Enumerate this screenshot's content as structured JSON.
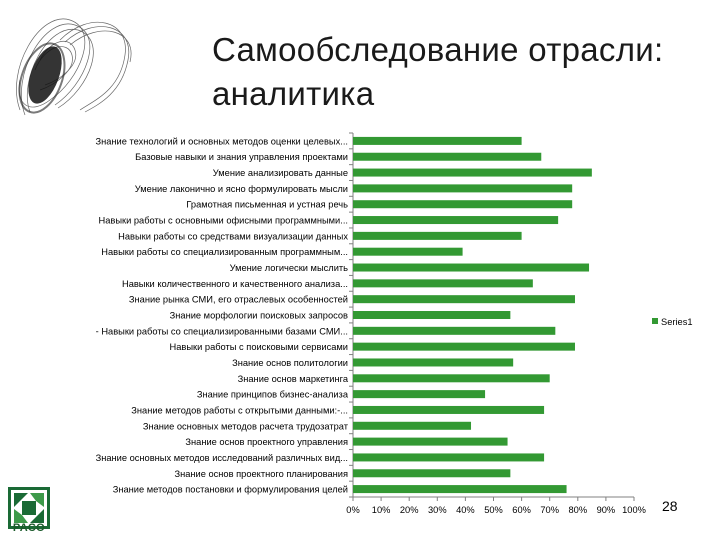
{
  "slide": {
    "title_line1": "Самообследование отрасли:",
    "title_line2": "аналитика",
    "page_number": "28",
    "logo_text": "РАСО",
    "colors": {
      "bar": "#339933",
      "axis": "#808080",
      "logo": "#1a6a35"
    }
  },
  "chart_data": {
    "type": "bar",
    "orientation": "horizontal",
    "categories": [
      "Знание технологий и основных методов оценки целевых...",
      "Базовые навыки и знания управления проектами",
      "Умение анализировать данные",
      "Умение лаконично и ясно формулировать мысли",
      "Грамотная письменная и устная речь",
      "Навыки работы с основными офисными программными...",
      "Навыки работы со средствами визуализации данных",
      "Навыки работы со специализированным программным...",
      "Умение логически мыслить",
      "Навыки количественного и качественного анализа...",
      "Знание рынка СМИ, его отраслевых особенностей",
      "Знание морфологии поисковых запросов",
      "- Навыки работы со специализированными базами СМИ...",
      "Навыки работы с поисковыми сервисами",
      "Знание основ политологии",
      "Знание основ маркетинга",
      "Знание принципов бизнес-анализа",
      "Знание методов работы с открытыми данными:-...",
      "Знание основных методов расчета трудозатрат",
      "Знание основ проектного управления",
      "Знание основных методов исследований различных вид...",
      "Знание основ проектного планирования",
      "Знание методов постановки и формулирования целей"
    ],
    "series": [
      {
        "name": "Series1",
        "values": [
          0.6,
          0.67,
          0.85,
          0.78,
          0.78,
          0.73,
          0.6,
          0.39,
          0.84,
          0.64,
          0.79,
          0.56,
          0.72,
          0.79,
          0.57,
          0.7,
          0.47,
          0.68,
          0.42,
          0.55,
          0.68,
          0.56,
          0.76
        ]
      }
    ],
    "x_ticks": [
      "0%",
      "10%",
      "20%",
      "30%",
      "40%",
      "50%",
      "60%",
      "70%",
      "80%",
      "90%",
      "100%"
    ],
    "xlim": [
      0,
      1
    ],
    "grid": false,
    "legend_position": "right"
  }
}
